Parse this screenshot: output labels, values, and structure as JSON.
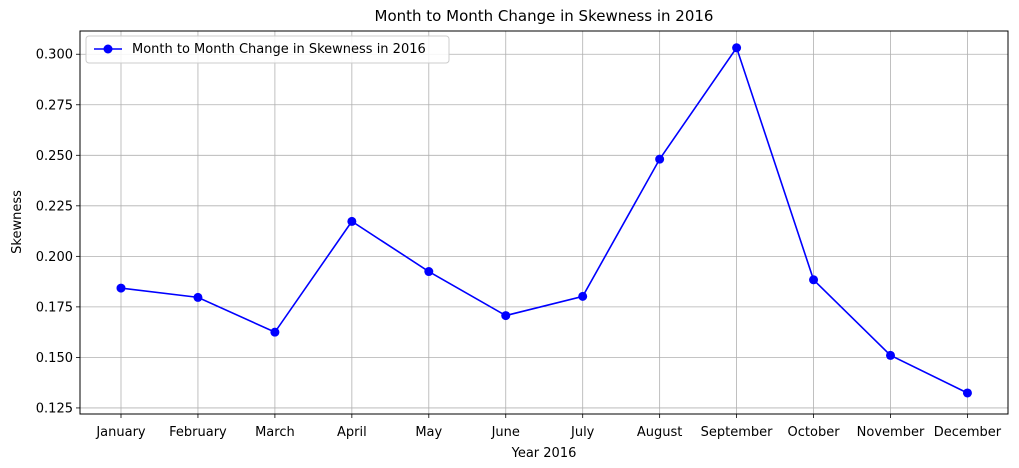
{
  "chart_data": {
    "type": "line",
    "title": "Month to Month Change in Skewness in 2016",
    "xlabel": "Year 2016",
    "ylabel": "Skewness",
    "categories": [
      "January",
      "February",
      "March",
      "April",
      "May",
      "June",
      "July",
      "August",
      "September",
      "October",
      "November",
      "December"
    ],
    "series": [
      {
        "name": "Month to Month Change in Skewness in 2016",
        "color": "#0000ff",
        "marker": "circle",
        "values": [
          0.1843,
          0.1797,
          0.1625,
          0.2173,
          0.1925,
          0.1707,
          0.1802,
          0.2481,
          0.3032,
          0.1884,
          0.151,
          0.1324
        ]
      }
    ],
    "ylim": [
      0.122,
      0.3115
    ],
    "yticks": [
      0.125,
      0.15,
      0.175,
      0.2,
      0.225,
      0.25,
      0.275,
      0.3
    ],
    "ytick_labels": [
      "0.125",
      "0.150",
      "0.175",
      "0.200",
      "0.225",
      "0.250",
      "0.275",
      "0.300"
    ],
    "grid": true,
    "legend_position": "top-left"
  }
}
